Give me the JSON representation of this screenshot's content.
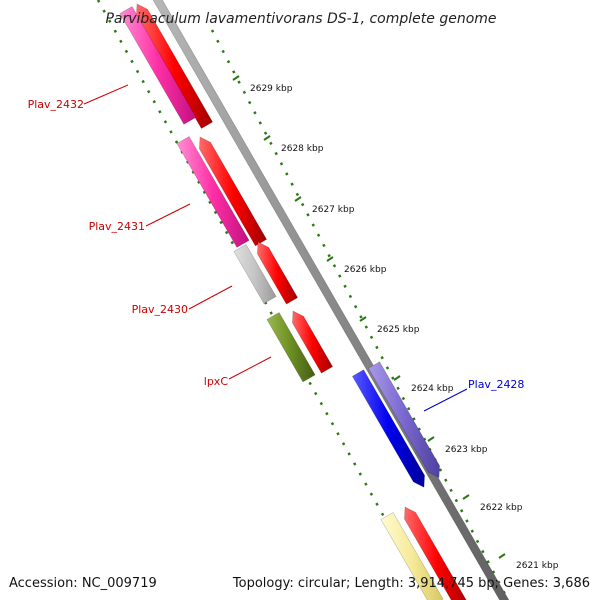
{
  "title": "Parvibaculum lavamentivorans DS-1, complete genome",
  "footer": {
    "accession": "Accession: NC_009719",
    "topology": "Topology: circular; Length: 3,914,745 bp; Genes: 3,686"
  },
  "colors": {
    "backbone": "#8a8a8a",
    "tick": "#2a7a12",
    "red_label": "#cc0000",
    "blue_label": "#0000cc"
  },
  "ticks": [
    "2629 kbp",
    "2628 kbp",
    "2627 kbp",
    "2626 kbp",
    "2625 kbp",
    "2624 kbp",
    "2623 kbp",
    "2622 kbp",
    "2621 kbp"
  ],
  "gene_labels": [
    {
      "name": "Plav_2432",
      "color": "#cc0000"
    },
    {
      "name": "Plav_2431",
      "color": "#cc0000"
    },
    {
      "name": "Plav_2430",
      "color": "#cc0000"
    },
    {
      "name": "lpxC",
      "color": "#cc0000"
    },
    {
      "name": "Plav_2428",
      "color": "#0000cc"
    }
  ]
}
